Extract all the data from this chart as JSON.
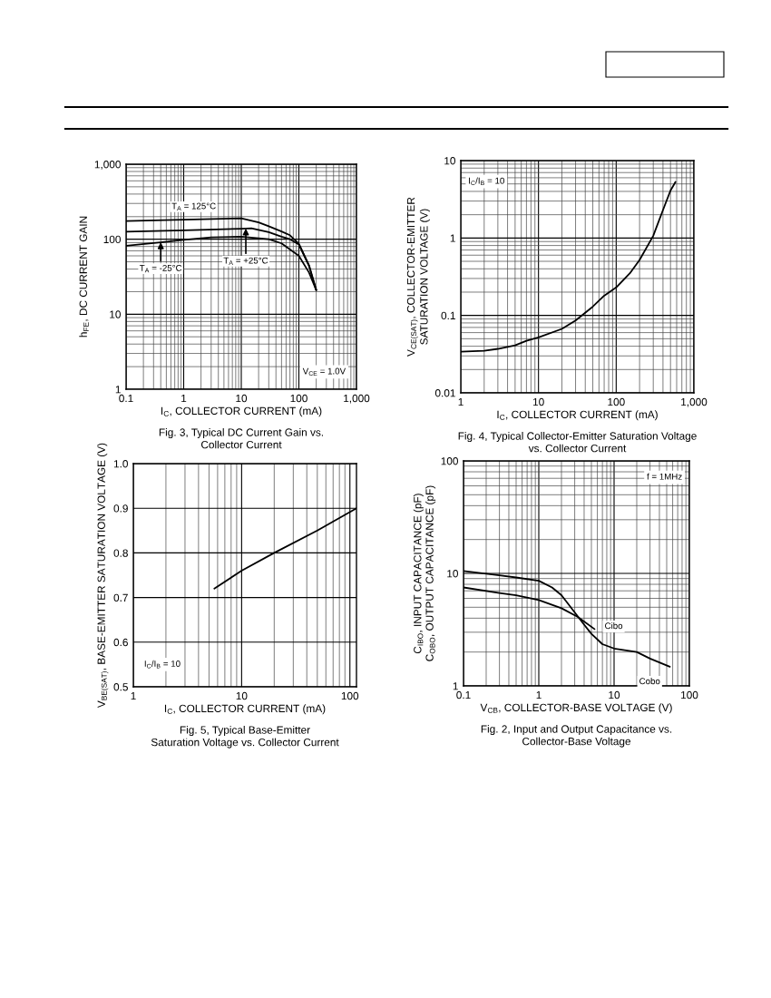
{
  "chart_data": [
    {
      "type": "line",
      "title": "Fig. 3, Typical DC Current Gain vs.\nCollector Current",
      "xlabel": "I$_{C}$, COLLECTOR CURRENT (mA)",
      "ylabel": "h$_{FE}$, DC CURRENT GAIN",
      "log": "xy",
      "grid": true,
      "xlim": [
        0.1,
        1000
      ],
      "ylim": [
        1,
        1000
      ],
      "xticks": [
        0.1,
        1,
        10,
        100,
        {
          "value": 1000,
          "label": "1,000"
        }
      ],
      "yticks": [
        1,
        10,
        100,
        {
          "value": 1000,
          "label": "1,000"
        }
      ],
      "series": [
        {
          "color": "#000000",
          "x": [
            0.1,
            1,
            10,
            20,
            30,
            50,
            70,
            100,
            150,
            200
          ],
          "values": [
            175,
            182,
            190,
            168,
            149,
            127,
            113,
            87,
            45,
            21
          ]
        },
        {
          "color": "#000000",
          "x": [
            0.1,
            1,
            10,
            15,
            30,
            50,
            70,
            100,
            150,
            200
          ],
          "values": [
            126,
            131,
            138,
            140,
            124,
            108,
            100,
            85,
            44,
            21
          ]
        },
        {
          "color": "#000000",
          "x": [
            0.1,
            0.4,
            1,
            3,
            10,
            30,
            50,
            100,
            150,
            200
          ],
          "values": [
            82,
            91,
            98,
            106,
            108,
            100,
            88,
            60,
            36,
            21
          ]
        }
      ],
      "annotations": [
        {
          "text": "T$_{A}$ = 125°C",
          "x": 1.5,
          "y": 184
        },
        {
          "text": "T$_{A}$ = +25°C",
          "x": 12,
          "y": 139
        },
        {
          "text": "T$_{A}$ = -25°C",
          "x": 0.4,
          "y": 91
        },
        "V$_{CE}$ = 1.0V"
      ]
    },
    {
      "type": "line",
      "title": "Fig. 4, Typical Collector-Emitter Saturation Voltage\nvs. Collector Current",
      "xlabel": "I$_{C}$, COLLECTOR CURRENT (mA)",
      "ylabel": "V$_{CE(SAT)}$, COLLECTOR-EMITTER\nSATURATION VOLTAGE (V)",
      "log": "xy",
      "grid": true,
      "xlim": [
        1,
        1000
      ],
      "ylim": [
        0.01,
        10
      ],
      "xticks": [
        1,
        10,
        100,
        {
          "value": 1000,
          "label": "1,000"
        }
      ],
      "yticks": [
        0.01,
        0.1,
        1,
        10
      ],
      "series": [
        {
          "color": "#000000",
          "x": [
            1,
            2,
            3,
            5,
            7,
            10,
            20,
            30,
            50,
            70,
            100,
            150,
            200,
            300,
            400,
            500,
            580
          ],
          "values": [
            0.034,
            0.035,
            0.037,
            0.041,
            0.047,
            0.052,
            0.067,
            0.086,
            0.13,
            0.18,
            0.23,
            0.35,
            0.52,
            1.07,
            2.3,
            4.1,
            5.3
          ]
        }
      ],
      "annotations": [
        "I$_{C}$/I$_{B}$ = 10"
      ]
    },
    {
      "type": "line",
      "title": "Fig. 5, Typical Base-Emitter\nSaturation Voltage vs. Collector Current",
      "xlabel": "I$_{C}$, COLLECTOR CURRENT (mA)",
      "ylabel": "V$_{BE(SAT)}$, BASE-EMITTER SATURATION VOLTAGE (V)",
      "log": "x",
      "grid": true,
      "xlim": [
        1,
        115
      ],
      "ylim": [
        0.5,
        1
      ],
      "xticks": [
        1,
        10,
        100
      ],
      "yticks": [
        0.5,
        0.6,
        0.7,
        0.8,
        0.9,
        {
          "value": 1,
          "label": "1.0"
        }
      ],
      "series": [
        {
          "color": "#000000",
          "x": [
            5.6,
            10,
            20,
            50,
            115
          ],
          "values": [
            0.72,
            0.76,
            0.8,
            0.85,
            0.9
          ]
        }
      ],
      "annotations": [
        "I$_{C}$/I$_{B}$ = 10"
      ]
    },
    {
      "type": "line",
      "title": "Fig. 2, Input and Output Capacitance vs.\nCollector-Base Voltage",
      "xlabel": "V$_{CB}$, COLLECTOR-BASE VOLTAGE (V)",
      "ylabel": "C$_{IBO}$, INPUT CAPACITANCE (pF)\nC$_{OBO}$, OUTPUT CAPACITANCE (pF)",
      "log": "xy",
      "grid": true,
      "xlim": [
        0.1,
        100
      ],
      "ylim": [
        1,
        100
      ],
      "xticks": [
        0.1,
        1,
        10,
        100
      ],
      "yticks": [
        1,
        10,
        100
      ],
      "series": [
        {
          "name": "Cobo",
          "color": "#000000",
          "x": [
            0.1,
            0.3,
            0.5,
            1,
            1.5,
            2,
            3,
            4,
            5,
            7,
            10,
            20,
            30,
            55
          ],
          "values": [
            10.5,
            9.6,
            9.2,
            8.6,
            7.5,
            6.4,
            4.5,
            3.5,
            2.9,
            2.35,
            2.15,
            2.0,
            1.75,
            1.48
          ]
        },
        {
          "name": "Cibo",
          "color": "#000000",
          "x": [
            0.1,
            0.3,
            0.5,
            1,
            2,
            3.3,
            5.5
          ],
          "values": [
            7.5,
            6.7,
            6.4,
            5.8,
            4.9,
            4.1,
            3.2
          ]
        }
      ],
      "annotations": [
        "f = 1MHz"
      ]
    }
  ]
}
